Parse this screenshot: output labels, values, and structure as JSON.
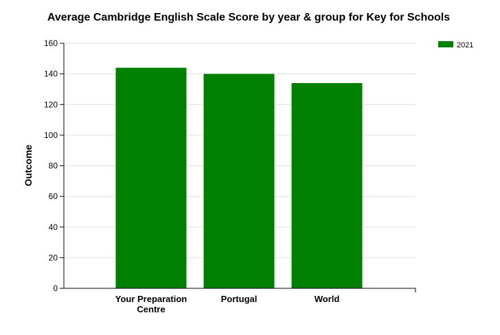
{
  "chart_data": {
    "type": "bar",
    "title": "Average Cambridge English Scale Score by year & group for Key for Schools",
    "xlabel": "",
    "ylabel": "Outcome",
    "categories": [
      [
        "Your Preparation",
        "Centre"
      ],
      [
        "Portugal"
      ],
      [
        "World"
      ]
    ],
    "series": [
      {
        "name": "2021",
        "color": "#008000",
        "values": [
          144,
          140,
          134
        ]
      }
    ],
    "ylim": [
      0,
      160
    ],
    "yticks": [
      0,
      20,
      40,
      60,
      80,
      100,
      120,
      140,
      160
    ],
    "grid": true,
    "legend_position": "top-right"
  }
}
